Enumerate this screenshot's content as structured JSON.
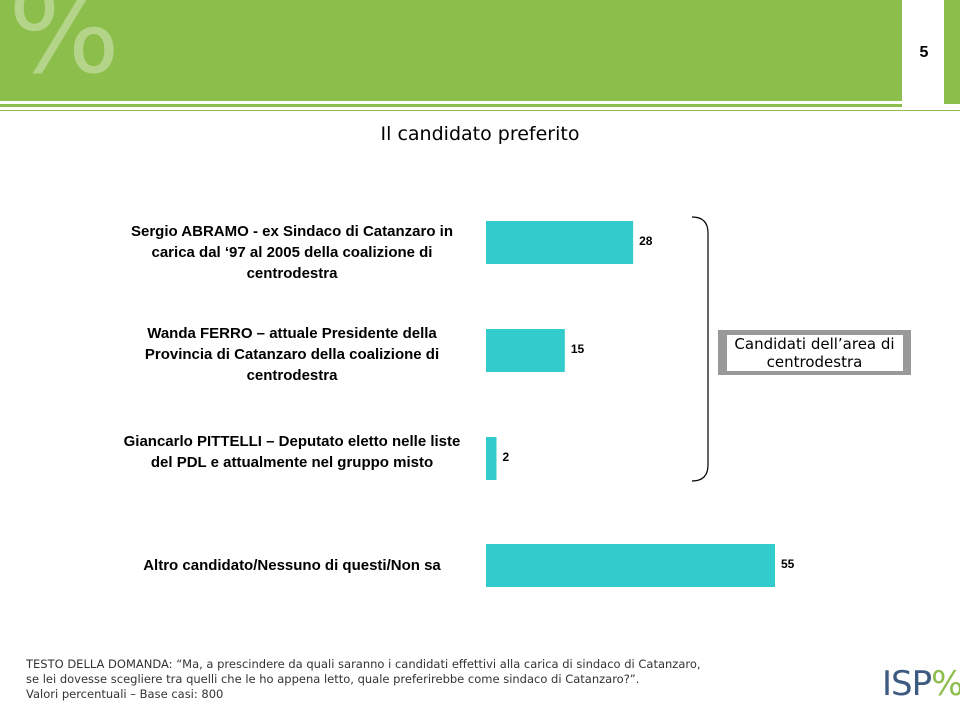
{
  "header": {
    "watermark": "%",
    "page_number": "5"
  },
  "chart_data": {
    "type": "bar",
    "orientation": "horizontal",
    "title": "Il candidato preferito",
    "categories": [
      "Sergio ABRAMO - ex Sindaco di Catanzaro in carica dal ‘97 al 2005 della coalizione di centrodestra",
      "Wanda FERRO – attuale Presidente della Provincia di Catanzaro della coalizione di centrodestra",
      "Giancarlo PITTELLI – Deputato eletto nelle liste del PDL e attualmente nel gruppo misto",
      "Altro candidato/Nessuno di questi/Non sa"
    ],
    "values": [
      28,
      15,
      2,
      55
    ],
    "xlim": [
      0,
      60
    ],
    "grid": false,
    "bar_color": "#33cccc",
    "annotation": {
      "text": "Candidati dell’area di centrodestra",
      "applies_to": [
        0,
        1,
        2
      ]
    }
  },
  "footer": {
    "line1": "TESTO DELLA DOMANDA: “Ma, a prescindere da quali saranno i candidati  effettivi alla carica di sindaco di Catanzaro,",
    "line2": "se lei dovesse scegliere tra quelli  che le ho appena letto, quale  preferirebbe come sindaco  di Catanzaro?”.",
    "line3": "Valori percentuali – Base casi:  800"
  },
  "logo": {
    "text": "ISP",
    "mark": "%"
  },
  "colors": {
    "header_green": "#8cbe4b",
    "bar": "#33cccc",
    "group_box": "#999999"
  }
}
